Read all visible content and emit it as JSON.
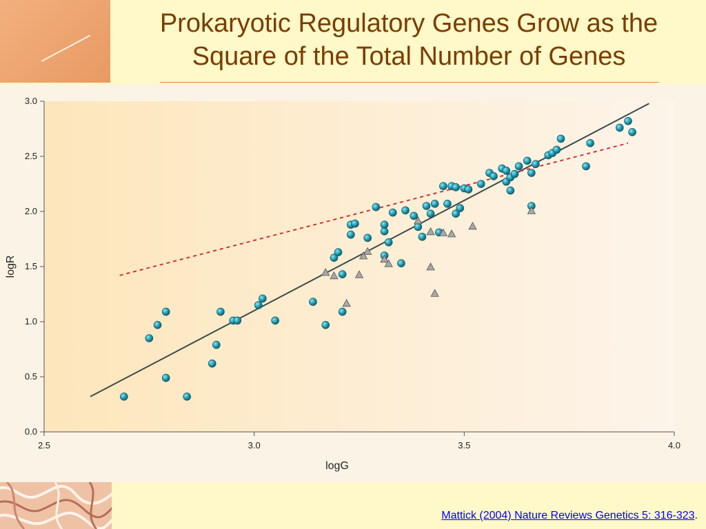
{
  "slide": {
    "title": "Prokaryotic Regulatory Genes Grow as the Square of the Total Number of Genes",
    "citation_text": "Mattick (2004) Nature Reviews Genetics 5: 316-323",
    "citation_suffix": "."
  },
  "colors": {
    "background": "#fff8c8",
    "title": "#7a3d00",
    "circle_fill": "#1e9ab0",
    "triangle_fill": "#a8a8a8",
    "fit_line": "#3a4a4a",
    "dashed_line": "#d23030"
  },
  "chart_data": {
    "type": "scatter",
    "xlabel": "logG",
    "ylabel": "logR",
    "xlim": [
      2.5,
      4.0
    ],
    "ylim": [
      0.0,
      3.0
    ],
    "xticks": [
      "2.5",
      "3.0",
      "3.5",
      "4.0"
    ],
    "yticks": [
      "0.0",
      "0.5",
      "1.0",
      "1.5",
      "2.0",
      "2.5",
      "3.0"
    ],
    "grid": false,
    "series": [
      {
        "marker": "circle",
        "points": [
          [
            2.69,
            0.32
          ],
          [
            2.75,
            0.85
          ],
          [
            2.77,
            0.97
          ],
          [
            2.79,
            1.09
          ],
          [
            2.79,
            0.49
          ],
          [
            2.84,
            0.32
          ],
          [
            2.9,
            0.62
          ],
          [
            2.91,
            0.79
          ],
          [
            2.92,
            1.09
          ],
          [
            2.95,
            1.01
          ],
          [
            2.96,
            1.01
          ],
          [
            3.01,
            1.15
          ],
          [
            3.02,
            1.21
          ],
          [
            3.05,
            1.01
          ],
          [
            3.14,
            1.18
          ],
          [
            3.17,
            0.97
          ],
          [
            3.19,
            1.58
          ],
          [
            3.2,
            1.63
          ],
          [
            3.21,
            1.43
          ],
          [
            3.21,
            1.09
          ],
          [
            3.23,
            1.88
          ],
          [
            3.23,
            1.79
          ],
          [
            3.24,
            1.89
          ],
          [
            3.27,
            1.76
          ],
          [
            3.29,
            2.04
          ],
          [
            3.31,
            1.82
          ],
          [
            3.31,
            1.88
          ],
          [
            3.31,
            1.6
          ],
          [
            3.32,
            1.72
          ],
          [
            3.33,
            1.99
          ],
          [
            3.35,
            1.53
          ],
          [
            3.36,
            2.01
          ],
          [
            3.38,
            1.96
          ],
          [
            3.39,
            1.86
          ],
          [
            3.4,
            1.77
          ],
          [
            3.41,
            2.05
          ],
          [
            3.42,
            1.98
          ],
          [
            3.43,
            2.07
          ],
          [
            3.44,
            1.81
          ],
          [
            3.45,
            2.23
          ],
          [
            3.46,
            2.07
          ],
          [
            3.47,
            2.23
          ],
          [
            3.48,
            2.22
          ],
          [
            3.48,
            1.98
          ],
          [
            3.49,
            2.03
          ],
          [
            3.5,
            2.21
          ],
          [
            3.51,
            2.2
          ],
          [
            3.54,
            2.25
          ],
          [
            3.56,
            2.35
          ],
          [
            3.57,
            2.32
          ],
          [
            3.59,
            2.39
          ],
          [
            3.6,
            2.27
          ],
          [
            3.6,
            2.37
          ],
          [
            3.61,
            2.31
          ],
          [
            3.61,
            2.19
          ],
          [
            3.62,
            2.34
          ],
          [
            3.63,
            2.41
          ],
          [
            3.65,
            2.46
          ],
          [
            3.66,
            2.05
          ],
          [
            3.66,
            2.35
          ],
          [
            3.67,
            2.43
          ],
          [
            3.7,
            2.51
          ],
          [
            3.71,
            2.53
          ],
          [
            3.72,
            2.56
          ],
          [
            3.73,
            2.66
          ],
          [
            3.79,
            2.41
          ],
          [
            3.8,
            2.62
          ],
          [
            3.87,
            2.76
          ],
          [
            3.89,
            2.82
          ],
          [
            3.9,
            2.72
          ]
        ]
      },
      {
        "marker": "triangle",
        "points": [
          [
            3.17,
            1.45
          ],
          [
            3.19,
            1.42
          ],
          [
            3.22,
            1.17
          ],
          [
            3.25,
            1.43
          ],
          [
            3.26,
            1.6
          ],
          [
            3.27,
            1.64
          ],
          [
            3.31,
            1.57
          ],
          [
            3.32,
            1.53
          ],
          [
            3.39,
            1.92
          ],
          [
            3.42,
            1.82
          ],
          [
            3.42,
            1.5
          ],
          [
            3.43,
            1.26
          ],
          [
            3.45,
            1.81
          ],
          [
            3.47,
            1.8
          ],
          [
            3.52,
            1.87
          ],
          [
            3.66,
            2.01
          ]
        ]
      }
    ],
    "lines": [
      {
        "style": "solid",
        "from": [
          2.61,
          0.32
        ],
        "to": [
          3.94,
          2.98
        ]
      },
      {
        "style": "dashed",
        "from": [
          2.68,
          1.42
        ],
        "to": [
          3.89,
          2.62
        ]
      }
    ]
  }
}
